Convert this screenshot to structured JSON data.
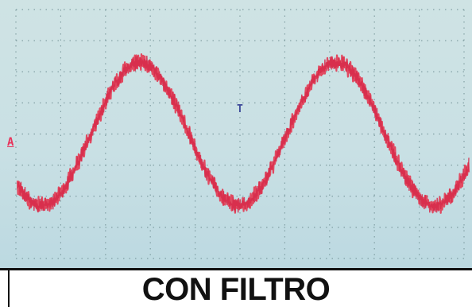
{
  "caption": "CON FILTRO",
  "scope": {
    "channel_marker": "A",
    "trigger_marker": "T",
    "trace_color": "#e33a52",
    "background_color": "#c9e0e4",
    "grid_color": "#6a8a8e"
  },
  "chart_data": {
    "type": "line",
    "title": "",
    "xlabel": "",
    "ylabel": "",
    "grid": true,
    "series": [
      {
        "shape": "noisy sine",
        "cycles_visible": 2.3,
        "amplitude_divisions": 2.3,
        "offset_divisions": 0,
        "noise_amplitude_divisions": 0.3
      }
    ]
  }
}
